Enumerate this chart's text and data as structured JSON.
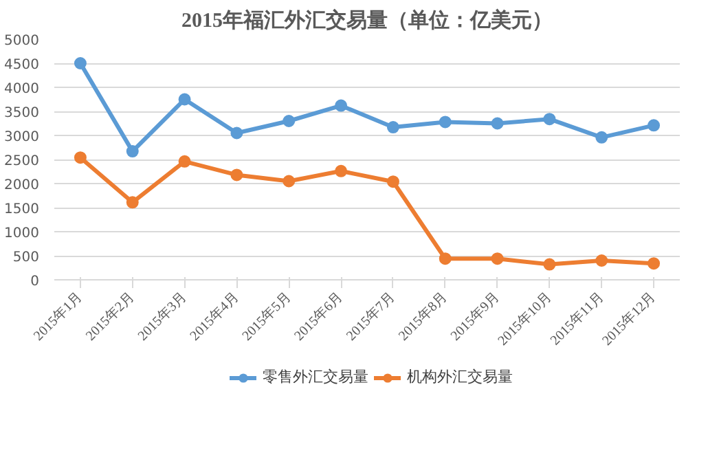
{
  "chart_data": {
    "type": "line",
    "title": "2015年福汇外汇交易量（单位：亿美元）",
    "categories": [
      "2015年1月",
      "2015年2月",
      "2015年3月",
      "2015年4月",
      "2015年5月",
      "2015年6月",
      "2015年7月",
      "2015年8月",
      "2015年9月",
      "2015年10月",
      "2015年11月",
      "2015年12月"
    ],
    "series": [
      {
        "name": "零售外汇交易量",
        "color": "#5b9bd5",
        "values": [
          4500,
          2670,
          3750,
          3050,
          3300,
          3620,
          3170,
          3280,
          3250,
          3340,
          2960,
          3210
        ]
      },
      {
        "name": "机构外汇交易量",
        "color": "#ed7d31",
        "values": [
          2540,
          1610,
          2460,
          2180,
          2050,
          2260,
          2040,
          440,
          440,
          320,
          400,
          340
        ]
      }
    ],
    "ylim": [
      0,
      5000
    ],
    "yticks": [
      0,
      500,
      1000,
      1500,
      2000,
      2500,
      3000,
      3500,
      4000,
      4500,
      5000
    ],
    "grid": "y",
    "legend": "bottom",
    "marker": "circle",
    "line_style": "solid"
  }
}
